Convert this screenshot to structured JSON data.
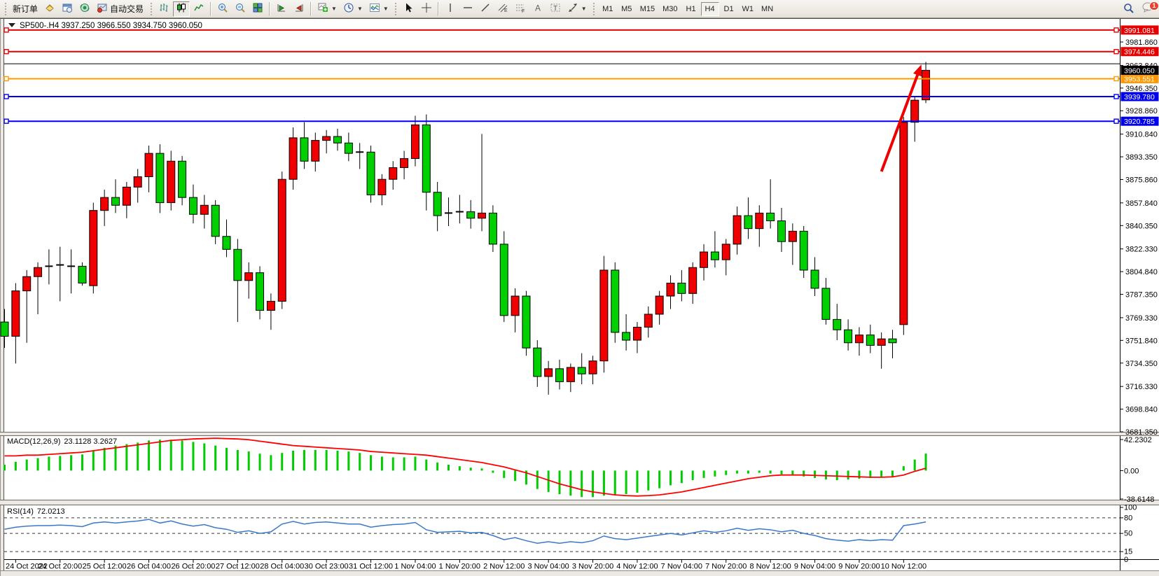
{
  "toolbar": {
    "new_order_label": "新订单",
    "autotrade_label": "自动交易",
    "timeframes": [
      "M1",
      "M5",
      "M15",
      "M30",
      "H1",
      "H4",
      "D1",
      "W1",
      "MN"
    ],
    "active_timeframe": "H4",
    "chat_badge_count": "1",
    "icon_names": [
      "charts-profile-icon",
      "new-window-icon",
      "market-watch-icon",
      "autotrade-icon",
      "bar-chart-icon",
      "candlestick-chart-icon",
      "line-chart-icon",
      "zoom-in-icon",
      "zoom-out-icon",
      "tile-windows-icon",
      "chart-shift-left-icon",
      "chart-shift-right-icon",
      "new-chart-icon",
      "period-icon",
      "indicators-icon",
      "cursor-icon",
      "crosshair-icon",
      "vertical-line-icon",
      "horizontal-line-icon",
      "trendline-icon",
      "equidistant-channel-icon",
      "fibonacci-icon",
      "text-icon",
      "text-label-icon",
      "arrow-objects-icon",
      "search-icon",
      "chat-icon"
    ]
  },
  "chart": {
    "title": "SP500-.H4  3937.250 3966.550 3934.750 3960.050",
    "symbol": "SP500-",
    "period": "H4",
    "open": "3937.250",
    "high": "3966.550",
    "low": "3934.750",
    "close": "3960.050",
    "colors": {
      "bull": "#f00000",
      "bear": "#00d000",
      "wick": "#000000",
      "line_red": "#e60000",
      "line_orange": "#ff9800",
      "line_blue": "#0000ee",
      "macd_hist": "#00cc00",
      "macd_signal": "#ff0000",
      "rsi_line": "#3a78c8",
      "arrow": "#ee0000",
      "bid_badge": "#000000"
    }
  },
  "indicators": {
    "macd": {
      "name": "MACD(12,26,9)",
      "values": "23.1128 3.2627"
    },
    "rsi": {
      "name": "RSI(14)",
      "values": "72.0213"
    }
  },
  "chart_data": [
    {
      "type": "candlestick",
      "title": "SP500-.H4",
      "x_label_every": 4,
      "x_label_start_index": 1,
      "x_labels": [
        "24 Oct 2022",
        "24 Oct 20:00",
        "25 Oct 12:00",
        "26 Oct 04:00",
        "26 Oct 20:00",
        "27 Oct 12:00",
        "28 Oct 04:00",
        "30 Oct 23:00",
        "31 Oct 12:00",
        "1 Nov 04:00",
        "1 Nov 20:00",
        "2 Nov 12:00",
        "3 Nov 04:00",
        "3 Nov 20:00",
        "4 Nov 12:00",
        "7 Nov 04:00",
        "7 Nov 20:00",
        "8 Nov 12:00",
        "9 Nov 04:00",
        "9 Nov 20:00",
        "10 Nov 12:00"
      ],
      "y_ticks": [
        "3981.860",
        "3963.840",
        "3946.350",
        "3928.860",
        "3910.840",
        "3893.350",
        "3875.860",
        "3857.840",
        "3840.350",
        "3822.330",
        "3804.840",
        "3787.350",
        "3769.330",
        "3751.840",
        "3734.350",
        "3716.330",
        "3698.840",
        "3681.350"
      ],
      "ylim": [
        3672.0,
        3996.0
      ],
      "ohlc": [
        [
          3766,
          3776,
          3746,
          3755
        ],
        [
          3755,
          3796,
          3734,
          3790
        ],
        [
          3790,
          3806,
          3750,
          3801
        ],
        [
          3801,
          3812,
          3772,
          3808
        ],
        [
          3808,
          3822,
          3795,
          3809
        ],
        [
          3809,
          3824,
          3782,
          3810
        ],
        [
          3810,
          3822,
          3788,
          3809
        ],
        [
          3809,
          3812,
          3794,
          3796
        ],
        [
          3794,
          3858,
          3788,
          3852
        ],
        [
          3852,
          3868,
          3840,
          3862
        ],
        [
          3862,
          3876,
          3850,
          3856
        ],
        [
          3856,
          3874,
          3846,
          3870
        ],
        [
          3870,
          3884,
          3858,
          3878
        ],
        [
          3878,
          3902,
          3866,
          3896
        ],
        [
          3896,
          3903,
          3850,
          3858
        ],
        [
          3858,
          3898,
          3852,
          3890
        ],
        [
          3890,
          3894,
          3856,
          3862
        ],
        [
          3862,
          3872,
          3842,
          3849
        ],
        [
          3849,
          3864,
          3838,
          3856
        ],
        [
          3856,
          3860,
          3826,
          3832
        ],
        [
          3832,
          3845,
          3816,
          3822
        ],
        [
          3822,
          3830,
          3766,
          3798
        ],
        [
          3798,
          3812,
          3784,
          3804
        ],
        [
          3804,
          3809,
          3768,
          3775
        ],
        [
          3775,
          3788,
          3760,
          3782
        ],
        [
          3782,
          3882,
          3776,
          3876
        ],
        [
          3876,
          3916,
          3868,
          3908
        ],
        [
          3908,
          3920,
          3884,
          3890
        ],
        [
          3890,
          3912,
          3882,
          3906
        ],
        [
          3906,
          3914,
          3896,
          3909
        ],
        [
          3909,
          3915,
          3898,
          3904
        ],
        [
          3904,
          3912,
          3890,
          3896
        ],
        [
          3896,
          3904,
          3884,
          3897
        ],
        [
          3897,
          3902,
          3858,
          3864
        ],
        [
          3864,
          3880,
          3856,
          3876
        ],
        [
          3876,
          3890,
          3868,
          3885
        ],
        [
          3885,
          3898,
          3876,
          3892
        ],
        [
          3892,
          3925,
          3886,
          3918
        ],
        [
          3918,
          3926,
          3852,
          3866
        ],
        [
          3866,
          3874,
          3836,
          3848
        ],
        [
          3848,
          3862,
          3840,
          3850
        ],
        [
          3850,
          3864,
          3842,
          3851
        ],
        [
          3851,
          3860,
          3838,
          3846
        ],
        [
          3846,
          3911,
          3836,
          3850
        ],
        [
          3850,
          3856,
          3820,
          3826
        ],
        [
          3826,
          3836,
          3766,
          3771
        ],
        [
          3771,
          3792,
          3758,
          3786
        ],
        [
          3786,
          3790,
          3740,
          3746
        ],
        [
          3746,
          3752,
          3716,
          3724
        ],
        [
          3724,
          3736,
          3710,
          3730
        ],
        [
          3730,
          3737,
          3714,
          3720
        ],
        [
          3720,
          3734,
          3712,
          3731
        ],
        [
          3731,
          3742,
          3718,
          3726
        ],
        [
          3726,
          3740,
          3718,
          3736
        ],
        [
          3736,
          3817,
          3727,
          3806
        ],
        [
          3806,
          3812,
          3750,
          3758
        ],
        [
          3758,
          3772,
          3744,
          3752
        ],
        [
          3752,
          3766,
          3742,
          3762
        ],
        [
          3762,
          3778,
          3754,
          3772
        ],
        [
          3772,
          3790,
          3764,
          3786
        ],
        [
          3786,
          3802,
          3776,
          3796
        ],
        [
          3796,
          3806,
          3782,
          3788
        ],
        [
          3788,
          3812,
          3780,
          3808
        ],
        [
          3808,
          3826,
          3798,
          3820
        ],
        [
          3820,
          3836,
          3808,
          3814
        ],
        [
          3814,
          3830,
          3802,
          3826
        ],
        [
          3826,
          3855,
          3818,
          3848
        ],
        [
          3848,
          3862,
          3830,
          3838
        ],
        [
          3838,
          3856,
          3824,
          3850
        ],
        [
          3850,
          3876,
          3838,
          3844
        ],
        [
          3844,
          3854,
          3820,
          3828
        ],
        [
          3828,
          3842,
          3810,
          3836
        ],
        [
          3836,
          3840,
          3800,
          3806
        ],
        [
          3806,
          3816,
          3786,
          3792
        ],
        [
          3792,
          3800,
          3764,
          3768
        ],
        [
          3768,
          3780,
          3752,
          3760
        ],
        [
          3760,
          3768,
          3744,
          3750
        ],
        [
          3750,
          3762,
          3740,
          3756
        ],
        [
          3756,
          3764,
          3742,
          3748
        ],
        [
          3748,
          3758,
          3730,
          3753
        ],
        [
          3753,
          3760,
          3738,
          3750
        ],
        [
          3764,
          3924,
          3756,
          3920
        ],
        [
          3920,
          3940,
          3905,
          3937
        ],
        [
          3937.25,
          3966.55,
          3934.75,
          3960.05
        ]
      ],
      "price_lines": [
        {
          "name": "resistance-line-1",
          "price": 3991.081,
          "label": "3991.081",
          "color": "#e60000",
          "width": 2,
          "badge": true,
          "handles": true
        },
        {
          "name": "resistance-line-2",
          "price": 3974.446,
          "label": "3974.446",
          "color": "#e60000",
          "width": 2,
          "badge": true,
          "handles": true
        },
        {
          "name": "ask-line",
          "price": 3965.1,
          "label": "",
          "color": "#000000",
          "width": 1,
          "badge": false,
          "handles": false
        },
        {
          "name": "orange-level-line",
          "price": 3953.551,
          "label": "3953.551",
          "color": "#ff9800",
          "width": 2,
          "badge": true,
          "handles": true
        },
        {
          "name": "support-line-1",
          "price": 3939.78,
          "label": "3939.780",
          "color": "#0000ee",
          "width": 2,
          "badge": true,
          "handles": true
        },
        {
          "name": "support-line-2",
          "price": 3920.785,
          "label": "3920.785",
          "color": "#0000ee",
          "width": 2,
          "badge": true,
          "handles": true
        }
      ],
      "current_price": {
        "value": 3960.05,
        "label": "3960.050"
      },
      "annotations": [
        {
          "type": "arrow",
          "from_index": 79.0,
          "from_price": 3882,
          "to_index": 82.6,
          "to_price": 3964.5,
          "color": "#ee0000",
          "width": 4
        }
      ],
      "legend_position": "none",
      "grid": false
    },
    {
      "type": "bar",
      "name": "MACD(12,26,9)",
      "current_values": [
        23.1128,
        3.2627
      ],
      "y_ticks": [
        "42.2302",
        "0.00",
        "-38.6148"
      ],
      "ylim": [
        -42,
        45.5
      ],
      "histogram": [
        8,
        12,
        15,
        17,
        19,
        20,
        21,
        22,
        27,
        31,
        34,
        36,
        38,
        41,
        42,
        42,
        41,
        39,
        37,
        34,
        31,
        28,
        26,
        23,
        21,
        24,
        27,
        28,
        28,
        28,
        27,
        26,
        24,
        21,
        19,
        18,
        18,
        19,
        15,
        11,
        8,
        6,
        4,
        3,
        -3,
        -10,
        -14,
        -19,
        -25,
        -29,
        -32,
        -34,
        -36,
        -36,
        -34,
        -33,
        -32,
        -30,
        -27,
        -24,
        -20,
        -17,
        -13,
        -10,
        -8,
        -6,
        -4,
        -4,
        -3,
        -4,
        -5,
        -6,
        -8,
        -10,
        -12,
        -13,
        -12,
        -11,
        -10,
        -9,
        -8,
        6,
        15,
        23.1128
      ],
      "signal": [
        20,
        20,
        21,
        21,
        22,
        23,
        24,
        25,
        27,
        29,
        31,
        33,
        35,
        37,
        39,
        41,
        42,
        43,
        43.5,
        44,
        43.5,
        43,
        42,
        40,
        38,
        36,
        34,
        33,
        32,
        31,
        30,
        29,
        28,
        26,
        25,
        24,
        23,
        22,
        21,
        19,
        17,
        15,
        13,
        11,
        8,
        5,
        1,
        -3,
        -8,
        -13,
        -18,
        -22,
        -26,
        -29,
        -31,
        -33,
        -34,
        -34.5,
        -34,
        -33,
        -31,
        -29,
        -26,
        -23,
        -20,
        -17,
        -14,
        -11,
        -9,
        -7,
        -6,
        -6,
        -6,
        -6.5,
        -7,
        -7.5,
        -8,
        -8.5,
        -9,
        -9,
        -8.5,
        -6,
        -1,
        3.2627
      ]
    },
    {
      "type": "line",
      "name": "RSI(14)",
      "current_value": 72.0213,
      "levels": [
        80,
        50,
        15
      ],
      "y_ticks": [
        "100",
        "80",
        "50",
        "15",
        "0"
      ],
      "ylim": [
        0,
        100
      ],
      "values": [
        58,
        62,
        64,
        65,
        65,
        66,
        65,
        63,
        70,
        72,
        70,
        72,
        74,
        77,
        70,
        74,
        68,
        64,
        67,
        61,
        58,
        52,
        55,
        50,
        53,
        68,
        73,
        68,
        71,
        72,
        70,
        68,
        68,
        62,
        65,
        67,
        68,
        71,
        57,
        52,
        53,
        54,
        51,
        52,
        46,
        38,
        42,
        36,
        31,
        34,
        31,
        34,
        32,
        36,
        45,
        40,
        38,
        41,
        44,
        47,
        50,
        47,
        51,
        55,
        52,
        55,
        60,
        56,
        59,
        57,
        53,
        56,
        50,
        46,
        40,
        37,
        35,
        38,
        36,
        38,
        37,
        65,
        68,
        72.0213
      ]
    }
  ]
}
